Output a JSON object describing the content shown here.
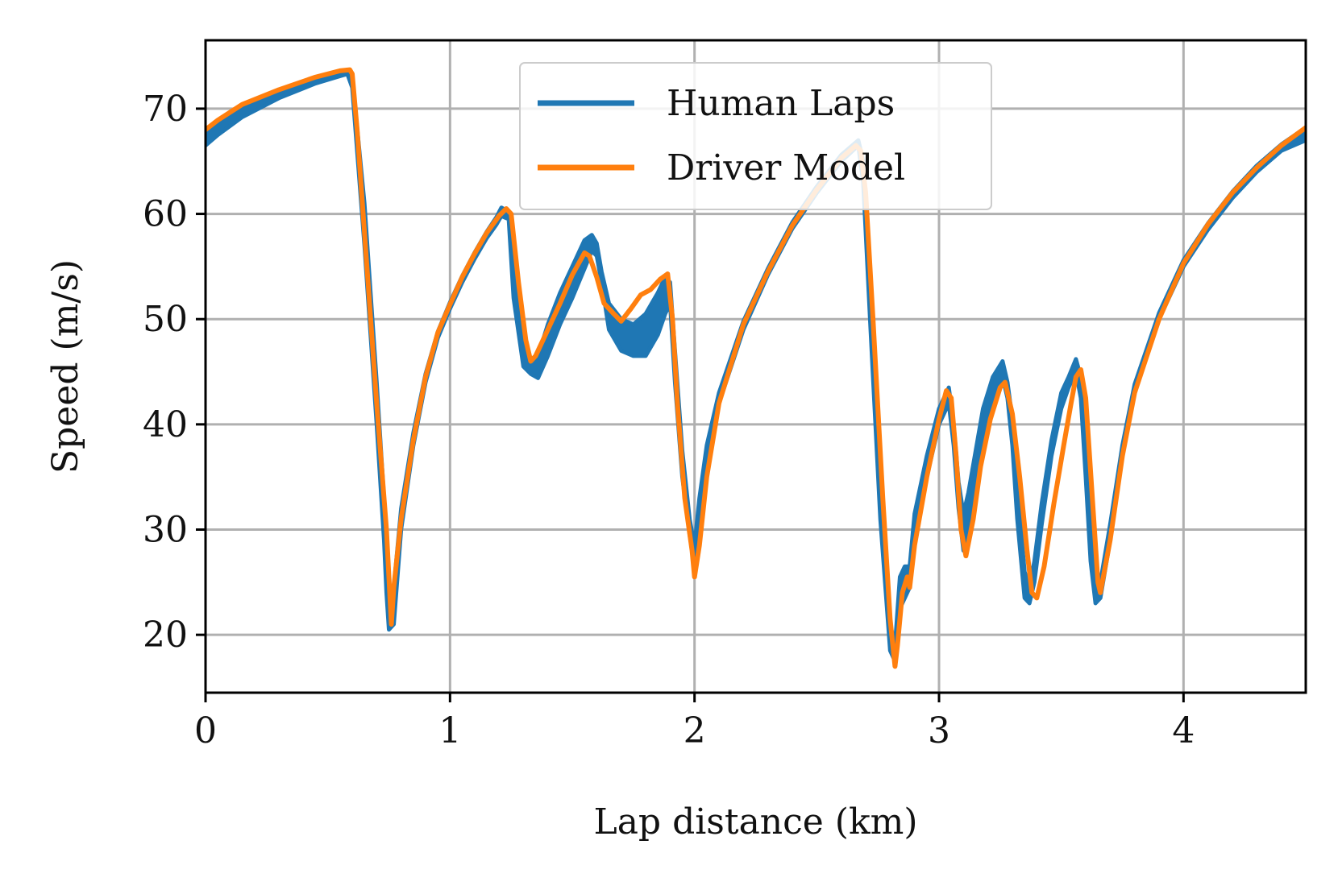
{
  "chart_data": {
    "type": "line",
    "title": "",
    "xlabel": "Lap distance (km)",
    "ylabel": "Speed (m/s)",
    "xlim": [
      0,
      4.5
    ],
    "ylim": [
      14.5,
      76.5
    ],
    "xticks": [
      0,
      1,
      2,
      3,
      4
    ],
    "yticks": [
      20,
      30,
      40,
      50,
      60,
      70
    ],
    "grid": true,
    "legend_position": "top-center",
    "series": [
      {
        "name": "Human Laps",
        "color": "#1f77b4",
        "style": "band",
        "x": [
          0,
          0.05,
          0.15,
          0.3,
          0.45,
          0.55,
          0.58,
          0.6,
          0.65,
          0.7,
          0.73,
          0.74,
          0.75,
          0.77,
          0.8,
          0.85,
          0.9,
          0.95,
          1.0,
          1.05,
          1.1,
          1.15,
          1.19,
          1.21,
          1.24,
          1.26,
          1.3,
          1.33,
          1.36,
          1.4,
          1.45,
          1.5,
          1.55,
          1.58,
          1.6,
          1.62,
          1.65,
          1.7,
          1.75,
          1.8,
          1.85,
          1.88,
          1.9,
          1.92,
          1.95,
          1.98,
          2.0,
          2.02,
          2.05,
          2.1,
          2.2,
          2.3,
          2.4,
          2.5,
          2.6,
          2.67,
          2.69,
          2.72,
          2.76,
          2.8,
          2.82,
          2.84,
          2.86,
          2.88,
          2.9,
          2.95,
          3.0,
          3.04,
          3.06,
          3.08,
          3.1,
          3.12,
          3.15,
          3.18,
          3.22,
          3.26,
          3.28,
          3.3,
          3.32,
          3.35,
          3.37,
          3.39,
          3.42,
          3.46,
          3.5,
          3.53,
          3.56,
          3.58,
          3.6,
          3.62,
          3.64,
          3.66,
          3.7,
          3.75,
          3.8,
          3.9,
          4.0,
          4.1,
          4.2,
          4.3,
          4.4,
          4.5
        ],
        "lower": [
          66.5,
          67.5,
          69.2,
          71.0,
          72.4,
          73.1,
          73.3,
          72.0,
          57.0,
          40.0,
          29.0,
          24.0,
          20.5,
          21.0,
          30.0,
          38.0,
          44.0,
          48.2,
          51.0,
          53.5,
          55.7,
          57.7,
          59.0,
          59.8,
          59.5,
          52.0,
          45.5,
          44.8,
          44.4,
          46.5,
          49.5,
          52.0,
          54.8,
          56.5,
          56.0,
          53.5,
          49.0,
          47.0,
          46.5,
          46.5,
          48.5,
          50.5,
          51.5,
          44.0,
          35.0,
          29.5,
          26.5,
          30.0,
          36.0,
          42.0,
          49.0,
          54.2,
          58.6,
          62.0,
          65.0,
          66.5,
          63.0,
          49.0,
          31.0,
          18.5,
          17.5,
          22.5,
          23.5,
          24.5,
          29.0,
          35.0,
          40.0,
          42.0,
          38.0,
          32.0,
          28.0,
          29.5,
          33.0,
          38.5,
          42.0,
          44.5,
          42.5,
          38.0,
          31.0,
          23.5,
          23.0,
          25.0,
          30.5,
          37.0,
          41.5,
          43.5,
          45.0,
          42.5,
          35.0,
          27.0,
          23.0,
          23.5,
          29.0,
          37.0,
          43.0,
          50.0,
          55.0,
          58.5,
          61.5,
          64.0,
          66.0,
          67.0
        ],
        "upper": [
          68.0,
          68.8,
          70.3,
          71.6,
          72.8,
          73.5,
          73.7,
          73.0,
          61.0,
          44.0,
          33.0,
          27.5,
          21.5,
          24.5,
          32.0,
          39.2,
          44.8,
          48.8,
          51.6,
          54.1,
          56.3,
          58.3,
          59.7,
          60.6,
          60.2,
          54.5,
          48.0,
          46.0,
          46.5,
          49.5,
          52.5,
          55.0,
          57.5,
          58.0,
          57.2,
          54.5,
          51.5,
          50.0,
          49.5,
          50.5,
          52.5,
          54.0,
          53.5,
          47.0,
          37.5,
          31.0,
          28.5,
          33.0,
          38.0,
          43.0,
          49.8,
          54.8,
          59.2,
          62.6,
          65.6,
          67.0,
          65.0,
          53.0,
          35.0,
          21.0,
          19.0,
          25.5,
          26.5,
          26.5,
          31.5,
          37.0,
          41.5,
          43.5,
          40.0,
          34.5,
          31.5,
          33.5,
          37.5,
          41.5,
          44.5,
          46.0,
          44.0,
          40.5,
          34.0,
          26.0,
          24.5,
          27.0,
          32.5,
          38.5,
          43.0,
          44.5,
          46.2,
          44.5,
          38.0,
          30.0,
          25.5,
          25.0,
          30.5,
          38.0,
          43.8,
          50.6,
          55.6,
          59.1,
          62.1,
          64.6,
          66.6,
          68.2
        ]
      },
      {
        "name": "Driver Model",
        "color": "#ff7f0e",
        "style": "line",
        "x": [
          0,
          0.05,
          0.15,
          0.3,
          0.45,
          0.55,
          0.59,
          0.6,
          0.62,
          0.66,
          0.7,
          0.74,
          0.76,
          0.77,
          0.8,
          0.85,
          0.9,
          0.95,
          1.0,
          1.05,
          1.1,
          1.15,
          1.2,
          1.23,
          1.25,
          1.28,
          1.31,
          1.33,
          1.35,
          1.4,
          1.45,
          1.5,
          1.55,
          1.57,
          1.6,
          1.63,
          1.67,
          1.7,
          1.74,
          1.78,
          1.82,
          1.86,
          1.89,
          1.91,
          1.93,
          1.96,
          1.99,
          2.0,
          2.02,
          2.05,
          2.1,
          2.2,
          2.3,
          2.4,
          2.5,
          2.6,
          2.66,
          2.68,
          2.7,
          2.73,
          2.77,
          2.8,
          2.82,
          2.83,
          2.85,
          2.87,
          2.88,
          2.9,
          2.95,
          3.0,
          3.03,
          3.05,
          3.07,
          3.09,
          3.11,
          3.14,
          3.17,
          3.21,
          3.25,
          3.27,
          3.3,
          3.33,
          3.36,
          3.38,
          3.4,
          3.43,
          3.47,
          3.51,
          3.54,
          3.56,
          3.58,
          3.6,
          3.63,
          3.65,
          3.66,
          3.7,
          3.75,
          3.8,
          3.9,
          4.0,
          4.1,
          4.2,
          4.3,
          4.4,
          4.5
        ],
        "y": [
          68.0,
          68.9,
          70.4,
          71.8,
          73.0,
          73.6,
          73.7,
          73.3,
          68.0,
          55.0,
          42.0,
          30.0,
          21.0,
          24.5,
          31.0,
          38.5,
          44.5,
          48.7,
          51.4,
          54.0,
          56.2,
          58.2,
          59.8,
          60.5,
          60.0,
          53.5,
          48.0,
          46.0,
          46.5,
          49.0,
          51.5,
          54.2,
          56.3,
          56.0,
          54.0,
          51.5,
          50.5,
          49.8,
          51.0,
          52.3,
          52.8,
          53.8,
          54.3,
          50.0,
          42.0,
          33.0,
          28.0,
          25.5,
          28.5,
          35.0,
          42.0,
          49.5,
          54.5,
          58.9,
          62.3,
          65.3,
          66.5,
          66.0,
          62.0,
          50.0,
          33.0,
          21.5,
          17.0,
          19.0,
          24.0,
          25.5,
          24.5,
          28.5,
          35.0,
          40.5,
          43.2,
          42.5,
          37.0,
          30.0,
          27.5,
          31.0,
          36.0,
          40.5,
          43.5,
          44.0,
          41.0,
          35.0,
          28.0,
          24.0,
          23.5,
          26.5,
          32.5,
          38.0,
          42.0,
          44.5,
          45.2,
          42.5,
          32.0,
          25.0,
          24.0,
          29.0,
          37.0,
          43.0,
          50.0,
          55.3,
          59.0,
          62.0,
          64.4,
          66.5,
          68.2
        ]
      }
    ]
  }
}
